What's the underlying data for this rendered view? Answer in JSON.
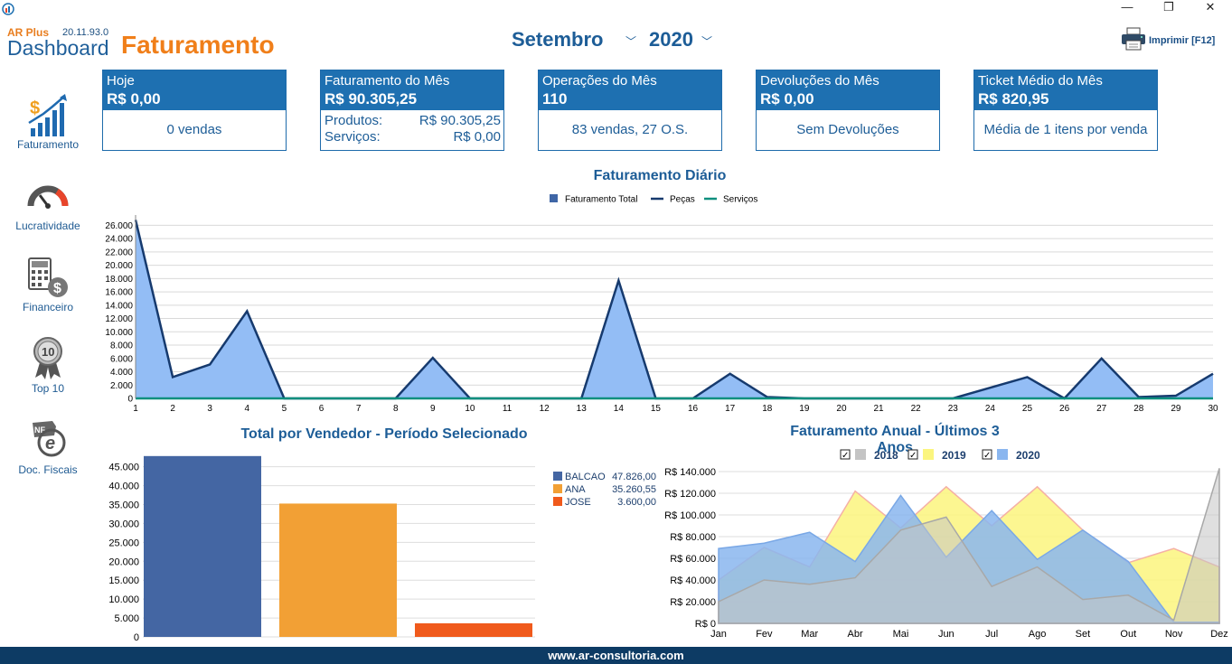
{
  "window": {
    "minimize": "—",
    "restore": "❐",
    "close": "✕"
  },
  "header": {
    "brand_small": "AR Plus",
    "version": "20.11.93.0",
    "brand_dashboard": "Dashboard",
    "brand_title": "Faturamento",
    "month": "Setembro",
    "year": "2020",
    "print_label": "Imprimir [F12]"
  },
  "sidebar": {
    "items": [
      {
        "label": "Faturamento",
        "icon": "revenue-chart-icon"
      },
      {
        "label": "Lucratividade",
        "icon": "gauge-icon"
      },
      {
        "label": "Financeiro",
        "icon": "calculator-icon"
      },
      {
        "label": "Top 10",
        "icon": "award-ribbon-icon"
      },
      {
        "label": "Doc. Fiscais",
        "icon": "nfe-document-icon"
      }
    ]
  },
  "cards": {
    "hoje": {
      "title": "Hoje",
      "value": "R$ 0,00",
      "detail": "0 vendas"
    },
    "mes": {
      "title": "Faturamento do Mês",
      "value": "R$ 90.305,25",
      "produtos_label": "Produtos:",
      "produtos_value": "R$ 90.305,25",
      "servicos_label": "Serviços:",
      "servicos_value": "R$ 0,00"
    },
    "operacoes": {
      "title": "Operações do Mês",
      "value": "110",
      "detail": "83 vendas, 27 O.S."
    },
    "devolucoes": {
      "title": "Devoluções do Mês",
      "value": "R$ 0,00",
      "detail": "Sem Devoluções"
    },
    "ticket": {
      "title": "Ticket Médio do Mês",
      "value": "R$ 820,95",
      "detail": "Média de 1 itens por venda"
    }
  },
  "colors": {
    "primary": "#1e70b1",
    "accent": "#f07f1a",
    "footer": "#0d3b64"
  },
  "footer": {
    "text": "www.ar-consultoria.com"
  },
  "chart_data": [
    {
      "type": "area",
      "title": "Faturamento Diário",
      "legend": [
        "Faturamento Total",
        "Peças",
        "Serviços"
      ],
      "legend_placement": "top",
      "x": [
        1,
        2,
        3,
        4,
        5,
        6,
        7,
        8,
        9,
        10,
        11,
        12,
        13,
        14,
        15,
        16,
        17,
        18,
        19,
        20,
        21,
        22,
        23,
        24,
        25,
        26,
        27,
        28,
        29,
        30
      ],
      "series": [
        {
          "name": "Faturamento Total",
          "values": [
            26800,
            3200,
            5100,
            13100,
            0,
            0,
            0,
            0,
            6100,
            0,
            0,
            0,
            0,
            17700,
            0,
            0,
            3700,
            200,
            0,
            0,
            0,
            0,
            0,
            1600,
            3200,
            0,
            6000,
            200,
            400,
            3700
          ]
        },
        {
          "name": "Peças",
          "values": [
            26800,
            3200,
            5100,
            13100,
            0,
            0,
            0,
            0,
            6100,
            0,
            0,
            0,
            0,
            17700,
            0,
            0,
            3700,
            200,
            0,
            0,
            0,
            0,
            0,
            1600,
            3200,
            0,
            6000,
            200,
            400,
            3700
          ]
        },
        {
          "name": "Serviços",
          "values": [
            0,
            0,
            0,
            0,
            0,
            0,
            0,
            0,
            0,
            0,
            0,
            0,
            0,
            0,
            0,
            0,
            0,
            0,
            0,
            0,
            0,
            0,
            0,
            0,
            0,
            0,
            0,
            0,
            0,
            0
          ]
        }
      ],
      "ylim": [
        0,
        27000
      ],
      "yticks": [
        0,
        2000,
        4000,
        6000,
        8000,
        10000,
        12000,
        14000,
        16000,
        18000,
        20000,
        22000,
        24000,
        26000
      ],
      "ytick_labels": [
        "0",
        "2.000",
        "4.000",
        "6.000",
        "8.000",
        "10.000",
        "12.000",
        "14.000",
        "16.000",
        "18.000",
        "20.000",
        "22.000",
        "24.000",
        "26.000"
      ],
      "grid": true
    },
    {
      "type": "bar",
      "title": "Total por Vendedor - Período Selecionado",
      "categories": [
        "BALCAO",
        "ANA",
        "JOSE"
      ],
      "values": [
        47826.0,
        35260.55,
        3600.0
      ],
      "value_labels": [
        "47.826,00",
        "35.260,55",
        "3.600,00"
      ],
      "colors": [
        "#4466a3",
        "#f2a035",
        "#f05a1c"
      ],
      "ylim": [
        0,
        48500
      ],
      "yticks": [
        0,
        5000,
        10000,
        15000,
        20000,
        25000,
        30000,
        35000,
        40000,
        45000
      ],
      "ytick_labels": [
        "0",
        "5.000",
        "10.000",
        "15.000",
        "20.000",
        "25.000",
        "30.000",
        "35.000",
        "40.000",
        "45.000"
      ],
      "legend_placement": "right",
      "grid": true
    },
    {
      "type": "area",
      "title": "Faturamento Anual - Últimos 3 Anos",
      "categories": [
        "Jan",
        "Fev",
        "Mar",
        "Abr",
        "Mai",
        "Jun",
        "Jul",
        "Ago",
        "Set",
        "Out",
        "Nov",
        "Dez"
      ],
      "series": [
        {
          "name": "2018",
          "checked": "✓",
          "color": "#c4c4c4",
          "values": [
            20000,
            40000,
            36000,
            42000,
            86000,
            98000,
            34000,
            52000,
            22000,
            26000,
            3000,
            143000
          ]
        },
        {
          "name": "2019",
          "checked": "✓",
          "color": "#fbf57e",
          "values": [
            40000,
            70000,
            52000,
            122000,
            88000,
            126000,
            90000,
            126000,
            86000,
            56000,
            69000,
            52000
          ]
        },
        {
          "name": "2020",
          "checked": "✓",
          "color": "#8ab6ef",
          "values": [
            69000,
            74000,
            84000,
            57000,
            118000,
            61000,
            104000,
            59000,
            86000,
            57000,
            1000,
            1000
          ]
        }
      ],
      "ylim": [
        0,
        140000
      ],
      "yticks": [
        0,
        20000,
        40000,
        60000,
        80000,
        100000,
        120000,
        140000
      ],
      "ytick_labels": [
        "R$ 0",
        "R$ 20.000",
        "R$ 40.000",
        "R$ 60.000",
        "R$ 80.000",
        "R$ 100.000",
        "R$ 120.000",
        "R$ 140.000"
      ],
      "legend_placement": "top",
      "grid": true
    }
  ]
}
